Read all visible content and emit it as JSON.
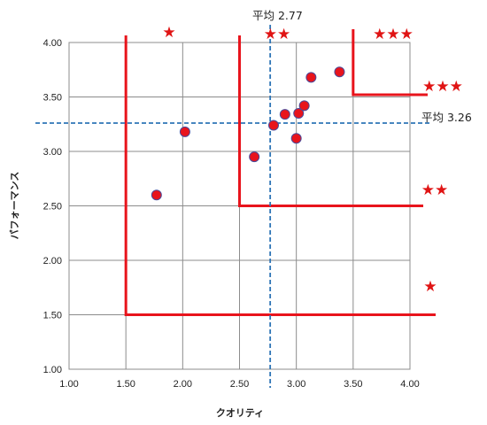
{
  "chart_data": {
    "type": "scatter",
    "xlabel": "クオリティ",
    "ylabel": "パフォーマンス",
    "xlim": [
      1.0,
      4.0
    ],
    "ylim": [
      1.0,
      4.0
    ],
    "x_ticks": [
      "1.00",
      "1.50",
      "2.00",
      "2.50",
      "3.00",
      "3.50",
      "4.00"
    ],
    "y_ticks": [
      "1.00",
      "1.50",
      "2.00",
      "2.50",
      "3.00",
      "3.50",
      "4.00"
    ],
    "grid": true,
    "points": [
      {
        "x": 1.77,
        "y": 2.6
      },
      {
        "x": 2.02,
        "y": 3.18
      },
      {
        "x": 2.63,
        "y": 2.95
      },
      {
        "x": 2.8,
        "y": 3.24
      },
      {
        "x": 2.9,
        "y": 3.34
      },
      {
        "x": 3.0,
        "y": 3.12
      },
      {
        "x": 3.02,
        "y": 3.35
      },
      {
        "x": 3.07,
        "y": 3.42
      },
      {
        "x": 3.13,
        "y": 3.68
      },
      {
        "x": 3.38,
        "y": 3.73
      }
    ],
    "averages": {
      "x": 2.77,
      "y": 3.26,
      "x_label": "平均 2.77",
      "y_label": "平均 3.26"
    },
    "rating_boundaries": [
      {
        "x_from": 1.5,
        "y_from": 1.5,
        "stars": "★"
      },
      {
        "x_from": 2.5,
        "y_from": 2.5,
        "stars": "★★"
      },
      {
        "x_from": 3.5,
        "y_from": 3.52,
        "stars": "★★★"
      }
    ],
    "star_labels": {
      "top": [
        "★",
        "★★",
        "★★★"
      ],
      "right": [
        "★★★",
        "★★",
        "★"
      ]
    },
    "colors": {
      "point_fill": "#e8141c",
      "point_stroke": "#4a4a9a",
      "boundary": "#e8141c",
      "average_line": "#2e75b6",
      "grid": "#8c8c8c",
      "star": "#e01414"
    }
  }
}
